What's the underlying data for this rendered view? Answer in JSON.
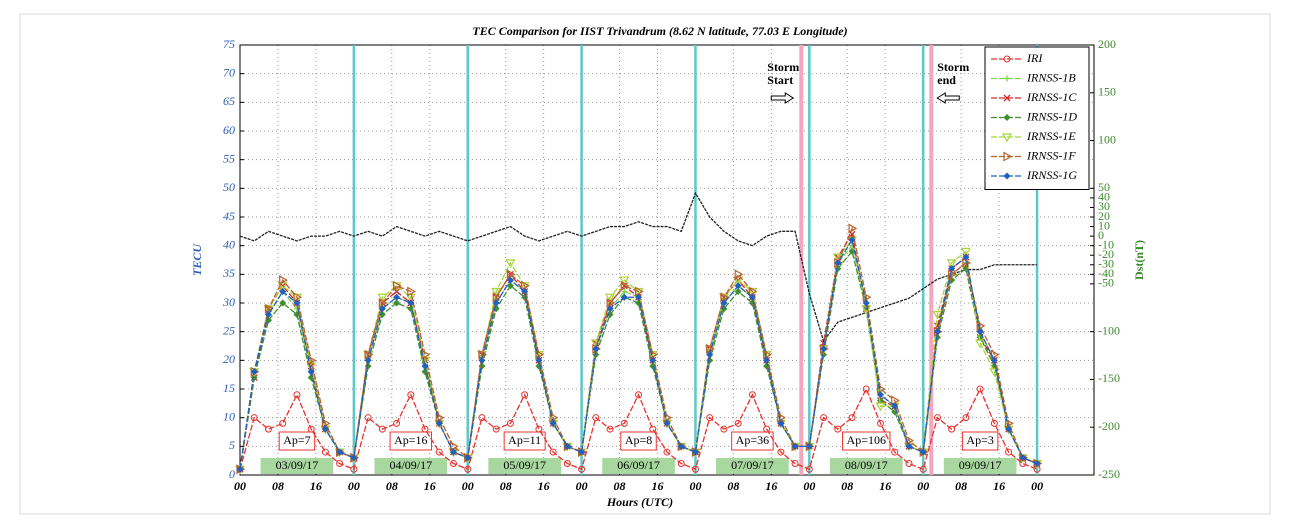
{
  "chart_data": {
    "type": "line",
    "title": "TEC Comparison for IIST Trivandrum (8.62 N latitude, 77.03 E Longitude)",
    "xlabel": "Hours (UTC)",
    "ylabel": "TECU",
    "y2label": "Dst(nT)",
    "grid": true,
    "legend": "upper right",
    "xlim": [
      0,
      180
    ],
    "ylim": [
      0,
      75
    ],
    "y2lim": [
      -250,
      200
    ],
    "xticks": [
      {
        "value": 0,
        "label": "00"
      },
      {
        "value": 8,
        "label": "08"
      },
      16,
      {
        "value": 24,
        "label": "00"
      },
      {
        "value": 32,
        "label": "08"
      },
      {
        "value": 40,
        "label": "16"
      },
      {
        "value": 48,
        "label": "00"
      },
      {
        "value": 56,
        "label": "08"
      },
      {
        "value": 64,
        "label": "16"
      },
      {
        "value": 72,
        "label": "00"
      },
      {
        "value": 80,
        "label": "08"
      },
      {
        "value": 88,
        "label": "16"
      },
      {
        "value": 96,
        "label": "00"
      },
      {
        "value": 104,
        "label": "08"
      },
      {
        "value": 112,
        "label": "16"
      },
      {
        "value": 120,
        "label": "00"
      },
      {
        "value": 128,
        "label": "08"
      },
      {
        "value": 136,
        "label": "16"
      },
      {
        "value": 144,
        "label": "00"
      },
      {
        "value": 152,
        "label": "08"
      },
      {
        "value": 160,
        "label": "16"
      },
      {
        "value": 168,
        "label": "00"
      }
    ],
    "yticks": [
      0,
      5,
      10,
      15,
      20,
      25,
      30,
      35,
      40,
      45,
      50,
      55,
      60,
      65,
      70,
      75
    ],
    "y2ticks": [
      200,
      150,
      100,
      50,
      40,
      30,
      20,
      10,
      0,
      -10,
      -20,
      -30,
      -40,
      -50,
      -100,
      -150,
      -200,
      -250
    ],
    "x": [
      0,
      3,
      6,
      9,
      12,
      15,
      18,
      21,
      24,
      27,
      30,
      33,
      36,
      39,
      42,
      45,
      48,
      51,
      54,
      57,
      60,
      63,
      66,
      69,
      72,
      75,
      78,
      81,
      84,
      87,
      90,
      93,
      96,
      99,
      102,
      105,
      108,
      111,
      114,
      117,
      120,
      123,
      126,
      129,
      132,
      135,
      138,
      141,
      144,
      147,
      150,
      153,
      156,
      159,
      162,
      165,
      168
    ],
    "series": [
      {
        "name": "IRI",
        "color": "#e8322e",
        "values": [
          1,
          10,
          8,
          9,
          14,
          8,
          4,
          2,
          1,
          10,
          8,
          9,
          14,
          8,
          4,
          2,
          1,
          10,
          8,
          9,
          14,
          8,
          4,
          2,
          1,
          10,
          8,
          9,
          14,
          8,
          4,
          2,
          1,
          10,
          8,
          9,
          14,
          8,
          4,
          2,
          1,
          10,
          8,
          10,
          15,
          9,
          4,
          2,
          1,
          10,
          8,
          10,
          15,
          9,
          4,
          2,
          1
        ]
      },
      {
        "name": "IRNSS-1B",
        "color": "#7fd34e",
        "values": [
          1,
          18,
          28,
          32,
          29,
          18,
          8,
          4,
          3,
          20,
          29,
          31,
          30,
          19,
          9,
          4,
          3,
          20,
          30,
          34,
          32,
          20,
          9,
          5,
          4,
          22,
          29,
          32,
          31,
          20,
          9,
          5,
          4,
          21,
          30,
          33,
          31,
          20,
          9,
          5,
          5,
          22,
          37,
          40,
          30,
          14,
          12,
          5,
          4,
          25,
          35,
          37,
          25,
          20,
          8,
          3,
          2
        ]
      },
      {
        "name": "IRNSS-1C",
        "color": "#d62728",
        "values": [
          1,
          17,
          29,
          33,
          30,
          19,
          8,
          4,
          3,
          21,
          30,
          32,
          30,
          20,
          9,
          4,
          3,
          21,
          31,
          35,
          32,
          20,
          9,
          5,
          4,
          23,
          30,
          33,
          31,
          20,
          9,
          5,
          4,
          22,
          31,
          34,
          31,
          20,
          9,
          5,
          5,
          23,
          38,
          42,
          29,
          13,
          12,
          5,
          4,
          26,
          36,
          38,
          24,
          20,
          8,
          3,
          2
        ]
      },
      {
        "name": "IRNSS-1D",
        "color": "#3f8f2f",
        "values": [
          1,
          17,
          27,
          30,
          28,
          17,
          8,
          4,
          3,
          19,
          28,
          30,
          29,
          18,
          9,
          4,
          3,
          19,
          29,
          33,
          31,
          19,
          9,
          5,
          4,
          21,
          28,
          31,
          30,
          19,
          9,
          5,
          4,
          20,
          29,
          32,
          30,
          19,
          9,
          5,
          5,
          21,
          36,
          39,
          29,
          13,
          11,
          5,
          4,
          24,
          34,
          36,
          24,
          19,
          8,
          3,
          2
        ]
      },
      {
        "name": "IRNSS-1E",
        "color": "#a8d53a",
        "values": [
          1,
          18,
          29,
          33,
          31,
          19,
          8,
          4,
          3,
          21,
          31,
          33,
          31,
          20,
          9,
          4,
          3,
          21,
          32,
          37,
          33,
          21,
          9,
          5,
          4,
          23,
          31,
          34,
          32,
          21,
          9,
          5,
          4,
          22,
          31,
          34,
          32,
          21,
          9,
          5,
          5,
          22,
          38,
          41,
          29,
          12,
          12,
          5,
          4,
          28,
          37,
          39,
          23,
          18,
          8,
          3,
          2
        ]
      },
      {
        "name": "IRNSS-1F",
        "color": "#b8612e",
        "values": [
          1,
          18,
          29,
          34,
          31,
          20,
          9,
          4,
          3,
          21,
          30,
          33,
          32,
          21,
          10,
          5,
          3,
          21,
          31,
          35,
          33,
          21,
          10,
          5,
          4,
          22,
          30,
          33,
          32,
          21,
          10,
          5,
          4,
          22,
          31,
          35,
          32,
          21,
          10,
          5,
          5,
          22,
          37,
          43,
          31,
          15,
          13,
          6,
          4,
          25,
          35,
          37,
          26,
          21,
          9,
          3,
          2
        ]
      },
      {
        "name": "IRNSS-1G",
        "color": "#2060c0",
        "values": [
          1,
          18,
          28,
          32,
          30,
          18,
          8,
          4,
          3,
          20,
          29,
          31,
          30,
          19,
          9,
          4,
          3,
          20,
          30,
          34,
          32,
          20,
          9,
          5,
          4,
          22,
          29,
          31,
          31,
          20,
          9,
          5,
          4,
          21,
          30,
          33,
          31,
          20,
          9,
          5,
          5,
          22,
          37,
          41,
          30,
          14,
          12,
          5,
          4,
          25,
          36,
          38,
          25,
          20,
          8,
          3,
          2
        ]
      }
    ],
    "dst": {
      "color": "#222222",
      "axis": "y2",
      "values": [
        0,
        -5,
        5,
        0,
        -5,
        0,
        0,
        5,
        0,
        5,
        0,
        10,
        5,
        0,
        5,
        0,
        -5,
        0,
        5,
        10,
        0,
        -5,
        0,
        5,
        0,
        5,
        10,
        10,
        15,
        10,
        10,
        5,
        45,
        20,
        5,
        -5,
        -10,
        0,
        5,
        5,
        -60,
        -110,
        -90,
        -85,
        -80,
        -75,
        -70,
        -65,
        -55,
        -45,
        -40,
        -35,
        -35,
        -30,
        -30,
        -30,
        -30
      ]
    },
    "day_lines": {
      "color": "#5cc8c8",
      "values": [
        24,
        48,
        72,
        96,
        120,
        144,
        168
      ]
    },
    "storm_lines": {
      "color": "#f4a6bd",
      "values": [
        118.3,
        145.7
      ]
    },
    "storm_start": [
      "Storm",
      "Start"
    ],
    "storm_end": [
      "Storm",
      "end"
    ],
    "days": [
      {
        "ap": "Ap=7",
        "date": "03/09/17"
      },
      {
        "ap": "Ap=16",
        "date": "04/09/17"
      },
      {
        "ap": "Ap=11",
        "date": "05/09/17"
      },
      {
        "ap": "Ap=8",
        "date": "06/09/17"
      },
      {
        "ap": "Ap=36",
        "date": "07/09/17"
      },
      {
        "ap": "Ap=106",
        "date": "08/09/17"
      },
      {
        "ap": "Ap=3",
        "date": "09/09/17"
      }
    ]
  }
}
